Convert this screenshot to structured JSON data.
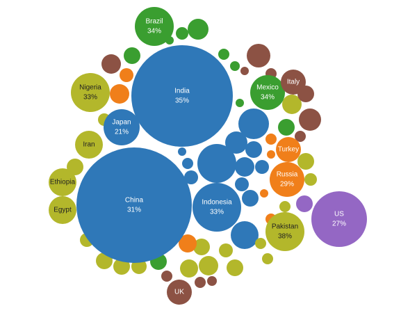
{
  "chart_data": {
    "type": "bubble",
    "categories": [
      "Brazil",
      "India",
      "Nigeria",
      "Mexico",
      "Italy",
      "Japan",
      "Iran",
      "Turkey",
      "Ethiopia",
      "Russia",
      "Egypt",
      "China",
      "Indonesia",
      "US",
      "Pakistan",
      "UK"
    ],
    "values": [
      34,
      35,
      33,
      34,
      null,
      21,
      null,
      null,
      null,
      29,
      null,
      31,
      33,
      27,
      38,
      null
    ],
    "value_labels": [
      "34%",
      "35%",
      "33%",
      "34%",
      null,
      "21%",
      null,
      null,
      null,
      "29%",
      null,
      "31%",
      "33%",
      "27%",
      "38%",
      null
    ],
    "colors": [
      "#3a9e30",
      "#2f78b8",
      "#b3b72b",
      "#3a9e30",
      "#8c5244",
      "#2f78b8",
      "#b3b72b",
      "#f07f1a",
      "#b3b72b",
      "#f07f1a",
      "#b3b72b",
      "#2f78b8",
      "#2f78b8",
      "#9467c4",
      "#b3b72b",
      "#8c5244"
    ]
  }
}
